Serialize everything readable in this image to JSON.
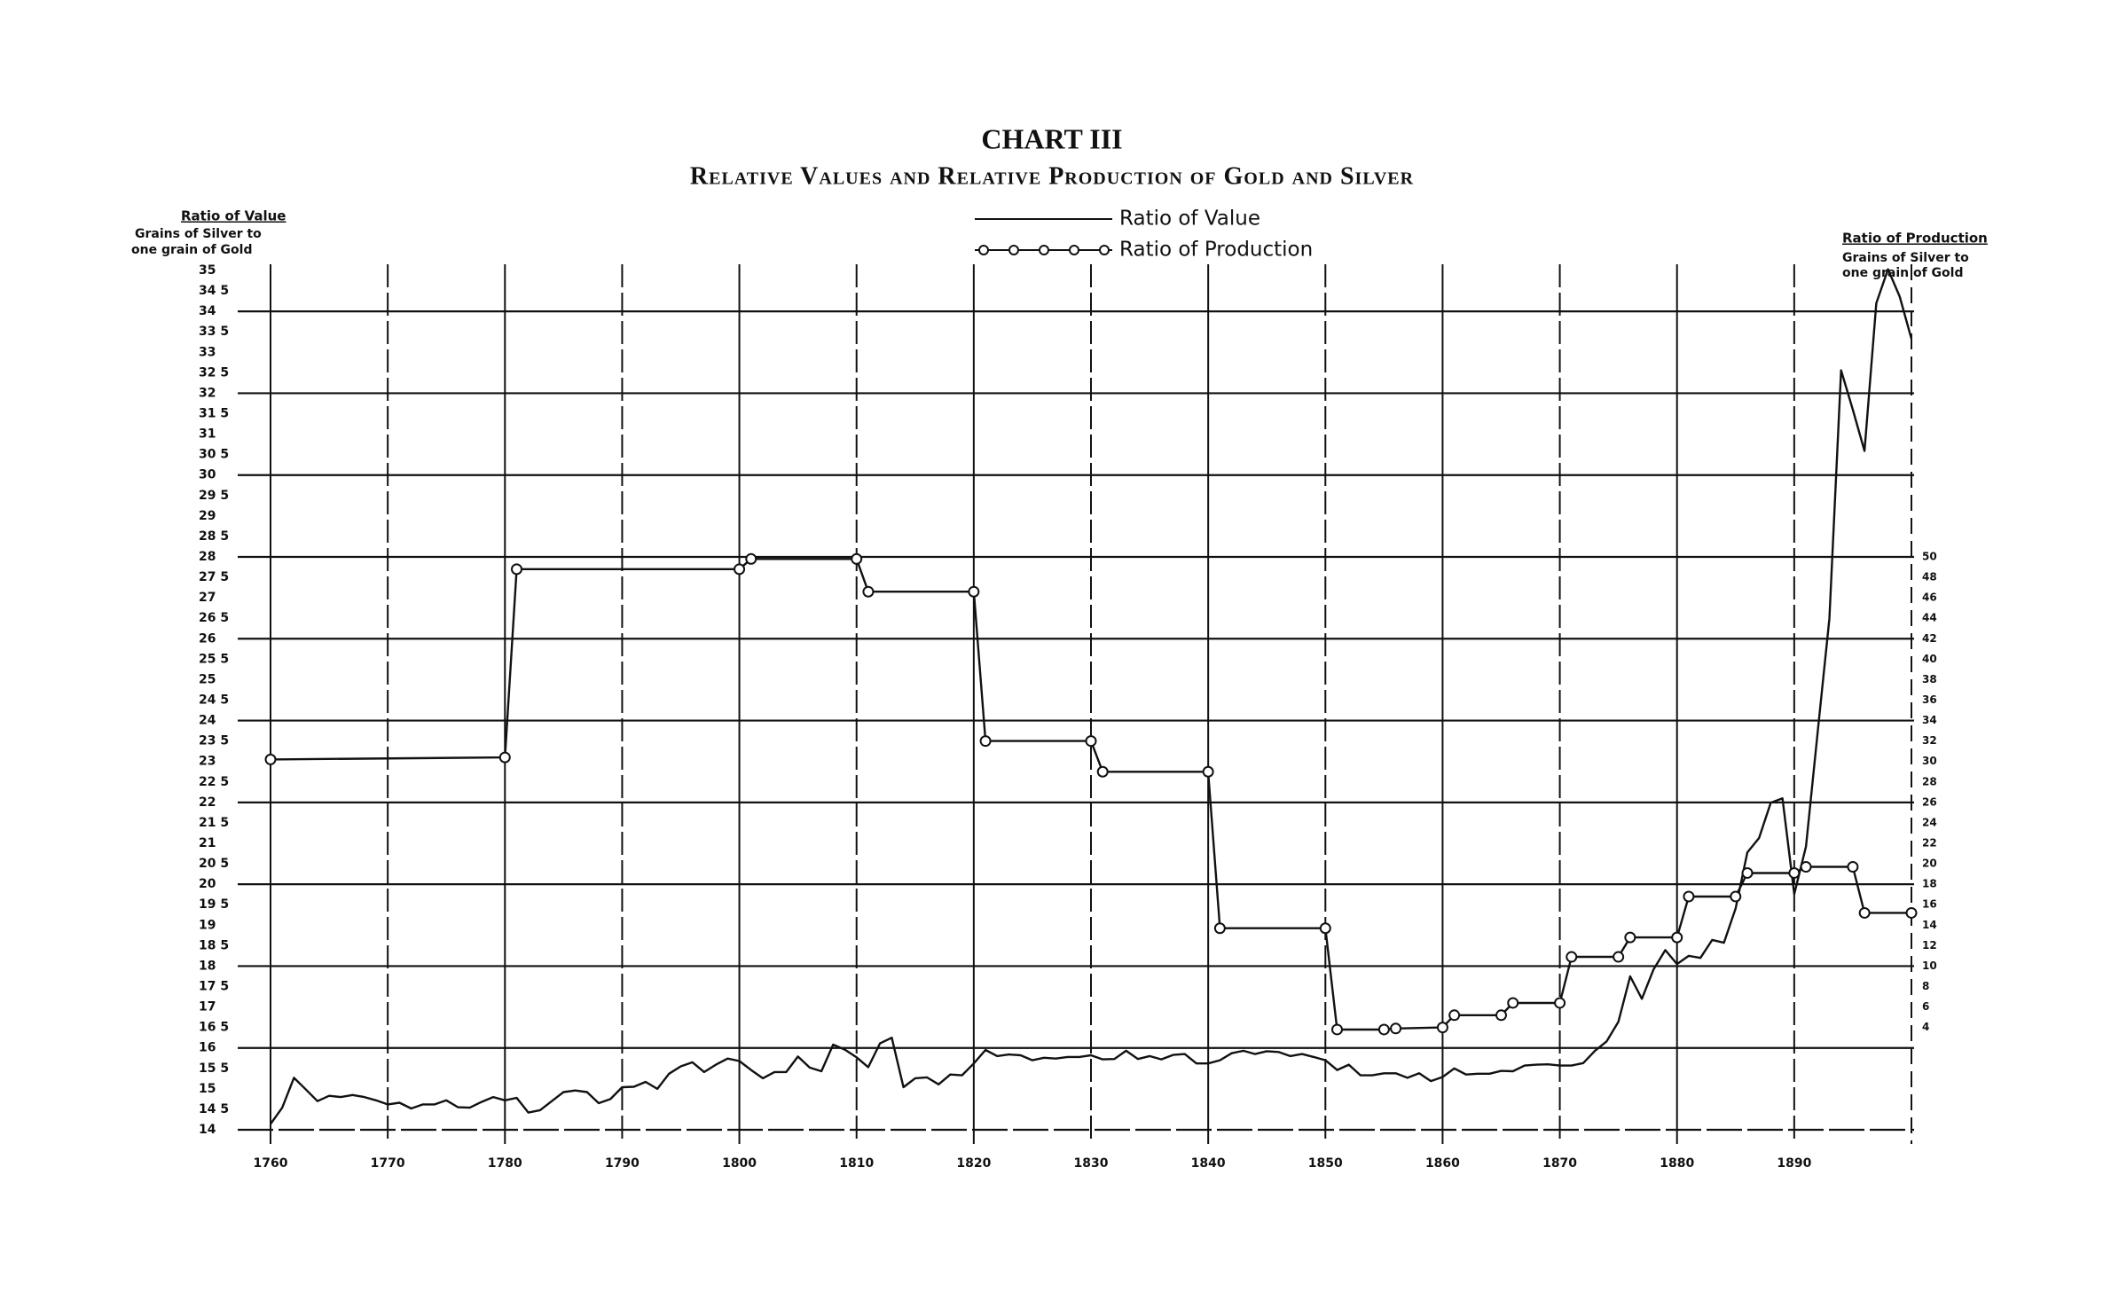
{
  "chart_data": {
    "type": "line",
    "title": "CHART III",
    "subtitle": "Relative Values and Relative Production of Gold and Silver",
    "y_label": "Ratio of Value",
    "y_label_sub": [
      "Grains of Silver to",
      "one grain of Gold"
    ],
    "y2_label": "Ratio of Production",
    "y2_label_sub": [
      "Grains of Silver to",
      "one grain of Gold"
    ],
    "xlim": [
      1760,
      1900
    ],
    "xticks": [
      1760,
      1770,
      1780,
      1790,
      1800,
      1810,
      1820,
      1830,
      1840,
      1850,
      1860,
      1870,
      1880,
      1890
    ],
    "ylim": [
      14,
      35
    ],
    "yticks": [
      14,
      {
        "value": 14.5,
        "label": "14 5"
      },
      15,
      {
        "value": 15.5,
        "label": "15 5"
      },
      16,
      {
        "value": 16.5,
        "label": "16 5"
      },
      17,
      {
        "value": 17.5,
        "label": "17 5"
      },
      18,
      {
        "value": 18.5,
        "label": "18 5"
      },
      19,
      {
        "value": 19.5,
        "label": "19 5"
      },
      20,
      {
        "value": 20.5,
        "label": "20 5"
      },
      21,
      {
        "value": 21.5,
        "label": "21 5"
      },
      22,
      {
        "value": 22.5,
        "label": "22 5"
      },
      23,
      {
        "value": 23.5,
        "label": "23 5"
      },
      24,
      {
        "value": 24.5,
        "label": "24 5"
      },
      25,
      {
        "value": 25.5,
        "label": "25 5"
      },
      26,
      {
        "value": 26.5,
        "label": "26 5"
      },
      27,
      {
        "value": 27.5,
        "label": "27 5"
      },
      28,
      {
        "value": 28.5,
        "label": "28 5"
      },
      29,
      {
        "value": 29.5,
        "label": "29 5"
      },
      30,
      {
        "value": 30.5,
        "label": "30 5"
      },
      31,
      {
        "value": 31.5,
        "label": "31 5"
      },
      32,
      {
        "value": 32.5,
        "label": "32 5"
      },
      33,
      {
        "value": 33.5,
        "label": "33 5"
      },
      34,
      {
        "value": 34.5,
        "label": "34 5"
      },
      35
    ],
    "y2lim": [
      -6,
      78
    ],
    "y2ticks": [
      4,
      6,
      8,
      10,
      12,
      14,
      16,
      18,
      20,
      22,
      24,
      26,
      28,
      30,
      32,
      34,
      36,
      38,
      40,
      42,
      44,
      46,
      48,
      50
    ],
    "grid": true,
    "legend": "top",
    "series": [
      {
        "name": "Ratio of Value",
        "color": "#111111",
        "marker": "none",
        "x": [
          1760,
          1761,
          1762,
          1763,
          1764,
          1765,
          1766,
          1767,
          1768,
          1769,
          1770,
          1771,
          1772,
          1773,
          1774,
          1775,
          1776,
          1777,
          1778,
          1779,
          1780,
          1781,
          1782,
          1783,
          1784,
          1785,
          1786,
          1787,
          1788,
          1789,
          1790,
          1791,
          1792,
          1793,
          1794,
          1795,
          1796,
          1797,
          1798,
          1799,
          1800,
          1801,
          1802,
          1803,
          1804,
          1805,
          1806,
          1807,
          1808,
          1809,
          1810,
          1811,
          1812,
          1813,
          1814,
          1815,
          1816,
          1817,
          1818,
          1819,
          1820,
          1821,
          1822,
          1823,
          1824,
          1825,
          1826,
          1827,
          1828,
          1829,
          1830,
          1831,
          1832,
          1833,
          1834,
          1835,
          1836,
          1837,
          1838,
          1839,
          1840,
          1841,
          1842,
          1843,
          1844,
          1845,
          1846,
          1847,
          1848,
          1849,
          1850,
          1851,
          1852,
          1853,
          1854,
          1855,
          1856,
          1857,
          1858,
          1859,
          1860,
          1861,
          1862,
          1863,
          1864,
          1865,
          1866,
          1867,
          1868,
          1869,
          1870,
          1871,
          1872,
          1873,
          1874,
          1875,
          1876,
          1877,
          1878,
          1879,
          1880,
          1881,
          1882,
          1883,
          1884,
          1885,
          1886,
          1887,
          1888,
          1889,
          1890,
          1891,
          1892,
          1893,
          1894,
          1895,
          1896,
          1897,
          1898,
          1899,
          1900
        ],
        "values": [
          14.14,
          14.54,
          15.27,
          14.99,
          14.7,
          14.83,
          14.8,
          14.85,
          14.8,
          14.72,
          14.62,
          14.66,
          14.52,
          14.62,
          14.62,
          14.72,
          14.55,
          14.54,
          14.68,
          14.8,
          14.72,
          14.78,
          14.42,
          14.48,
          14.7,
          14.92,
          14.96,
          14.92,
          14.65,
          14.75,
          15.04,
          15.05,
          15.17,
          15,
          15.37,
          15.55,
          15.65,
          15.41,
          15.59,
          15.74,
          15.68,
          15.46,
          15.26,
          15.41,
          15.41,
          15.79,
          15.52,
          15.43,
          16.08,
          15.96,
          15.77,
          15.53,
          16.11,
          16.25,
          15.04,
          15.26,
          15.28,
          15.11,
          15.35,
          15.33,
          15.62,
          15.95,
          15.8,
          15.84,
          15.82,
          15.7,
          15.76,
          15.74,
          15.78,
          15.78,
          15.82,
          15.72,
          15.73,
          15.93,
          15.73,
          15.8,
          15.72,
          15.83,
          15.85,
          15.62,
          15.62,
          15.7,
          15.87,
          15.93,
          15.85,
          15.92,
          15.9,
          15.8,
          15.85,
          15.78,
          15.7,
          15.46,
          15.59,
          15.33,
          15.33,
          15.38,
          15.38,
          15.27,
          15.38,
          15.19,
          15.29,
          15.5,
          15.35,
          15.37,
          15.37,
          15.44,
          15.43,
          15.57,
          15.59,
          15.6,
          15.57,
          15.57,
          15.63,
          15.93,
          16.16,
          16.64,
          17.75,
          17.2,
          17.92,
          18.39,
          18.05,
          18.25,
          18.2,
          18.64,
          18.57,
          19.41,
          20.78,
          21.13,
          21.99,
          22.1,
          19.76,
          20.92,
          23.72,
          26.49,
          32.56,
          31.6,
          30.59,
          34.2,
          35.03,
          34.36,
          33.33
        ]
      },
      {
        "name": "Ratio of Production",
        "color": "#111111",
        "marker": "circle",
        "axis": "y2",
        "x": [
          1760,
          1780,
          1781,
          1800,
          1801,
          1810,
          1811,
          1820,
          1821,
          1830,
          1831,
          1840,
          1841,
          1850,
          1851,
          1855,
          1856,
          1860,
          1861,
          1865,
          1866,
          1870,
          1871,
          1875,
          1876,
          1880,
          1881,
          1885,
          1886,
          1890,
          1891,
          1895,
          1896,
          1900
        ],
        "values": [
          30.2,
          30.4,
          48.8,
          48.8,
          49.8,
          49.8,
          46.6,
          46.6,
          32,
          32,
          29,
          29,
          13.7,
          13.7,
          3.8,
          3.8,
          3.9,
          4,
          5.2,
          5.2,
          6.4,
          6.4,
          10.9,
          10.9,
          12.8,
          12.8,
          16.8,
          16.8,
          19.1,
          19.1,
          19.7,
          19.7,
          15.2,
          15.2
        ]
      }
    ]
  }
}
